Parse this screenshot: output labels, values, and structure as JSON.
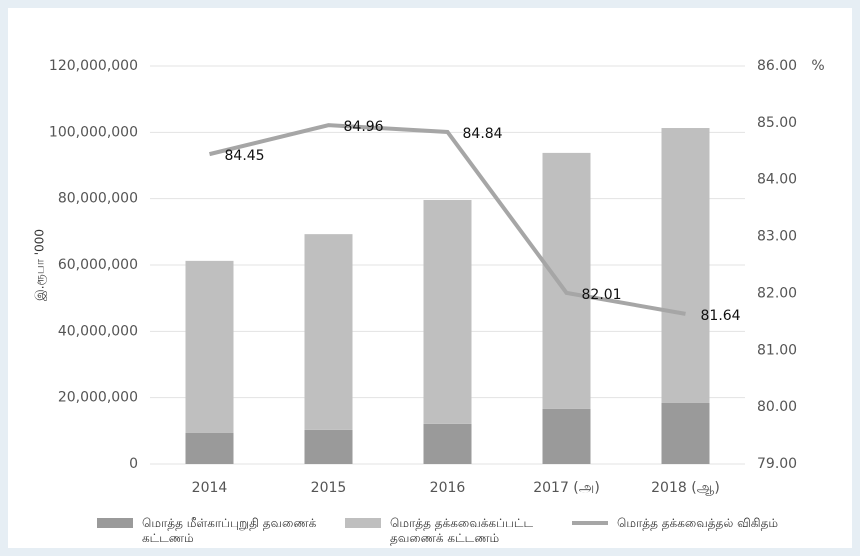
{
  "chart_data": {
    "type": "bar",
    "y_label": "இ.ரூபா '000",
    "y2_label": "%",
    "categories": [
      "2014",
      "2015",
      "2016",
      "2017 (அ)",
      "2018 (ஆ)"
    ],
    "series": [
      {
        "name": "மொத்த மீள்காப்புறுதி தவணைக் கட்டணம்",
        "type": "bar",
        "color": "#9a9a9a",
        "values": [
          9350000,
          10300000,
          12100000,
          16600000,
          18400000
        ]
      },
      {
        "name": "மொத்த தக்கவைக்கப்பட்ட தவணைக் கட்டணம்",
        "type": "bar",
        "color": "#bfbfbf",
        "values": [
          51900000,
          59000000,
          67500000,
          77200000,
          82900000
        ]
      },
      {
        "name": "மொத்த தக்கவைத்தல் விகிதம்",
        "type": "line",
        "axis": "y2",
        "color": "#a6a6a6",
        "values": [
          84.45,
          84.96,
          84.84,
          82.01,
          81.64
        ]
      }
    ],
    "stacked": true,
    "ylim": [
      0,
      120000000
    ],
    "yticks": [
      0,
      {
        "value": 20000000,
        "label": "20,000,000"
      },
      {
        "value": 40000000,
        "label": "40,000,000"
      },
      {
        "value": 60000000,
        "label": "60,000,000"
      },
      {
        "value": 80000000,
        "label": "80,000,000"
      },
      {
        "value": 100000000,
        "label": "100,000,000"
      },
      {
        "value": 120000000,
        "label": "120,000,000"
      }
    ],
    "y2lim": [
      79,
      86
    ],
    "y2ticks": [
      {
        "value": 79,
        "label": "79.00"
      },
      {
        "value": 80,
        "label": "80.00"
      },
      {
        "value": 81,
        "label": "81.00"
      },
      {
        "value": 82,
        "label": "82.00"
      },
      {
        "value": 83,
        "label": "83.00"
      },
      {
        "value": 84,
        "label": "84.00"
      },
      {
        "value": 85,
        "label": "85.00"
      },
      {
        "value": 86,
        "label": "86.00"
      }
    ],
    "grid": true,
    "legend": "bottom"
  }
}
